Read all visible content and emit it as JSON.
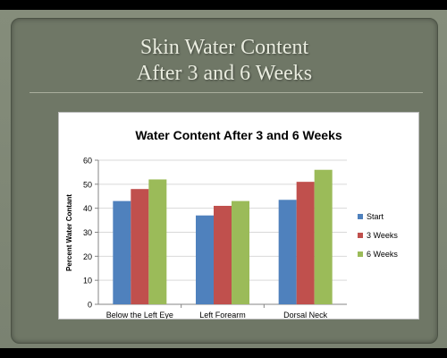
{
  "slide": {
    "title_line1": "Skin Water Content",
    "title_line2": "After 3 and 6 Weeks"
  },
  "chart_data": {
    "type": "bar",
    "title": "Water Content After 3 and 6 Weeks",
    "xlabel": "",
    "ylabel": "Percent Water Contant",
    "categories": [
      "Below the Left Eye",
      "Left Forearm",
      "Dorsal Neck"
    ],
    "series": [
      {
        "name": "Start",
        "values": [
          43,
          37,
          43.5
        ],
        "color": "#4f81bd"
      },
      {
        "name": "3 Weeks",
        "values": [
          48,
          41,
          51
        ],
        "color": "#c0504d"
      },
      {
        "name": "6 Weeks",
        "values": [
          52,
          43,
          56
        ],
        "color": "#9bbb59"
      }
    ],
    "ylim": [
      0,
      60
    ],
    "yticks": [
      0,
      10,
      20,
      30,
      40,
      50,
      60
    ],
    "grid": true,
    "legend_position": "right"
  }
}
